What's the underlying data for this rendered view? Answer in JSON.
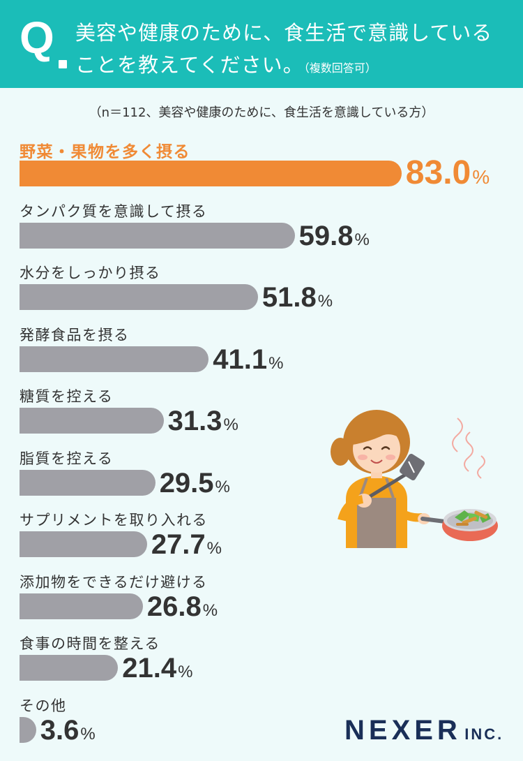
{
  "header": {
    "q": "Q",
    "line1": "美容や健康のために、食生活で意識している",
    "line2": "ことを教えてください。",
    "note": "（複数回答可）"
  },
  "sample": "（n＝112、美容や健康のために、食生活を意識している方）",
  "unit": "%",
  "colors": {
    "header": "#1bbdb8",
    "highlight": "#f08a35",
    "bar": "#a0a0a6",
    "background": "#eefafa",
    "logo": "#1a2f58"
  },
  "chart_data": {
    "type": "bar",
    "orientation": "horizontal",
    "categories": [
      "野菜・果物を多く摂る",
      "タンパク質を意識して摂る",
      "水分をしっかり摂る",
      "発酵食品を摂る",
      "糖質を控える",
      "脂質を控える",
      "サプリメントを取り入れる",
      "添加物をできるだけ避ける",
      "食事の時間を整える",
      "その他"
    ],
    "values": [
      83.0,
      59.8,
      51.8,
      41.1,
      31.3,
      29.5,
      27.7,
      26.8,
      21.4,
      3.6
    ],
    "value_labels": [
      "83.0",
      "59.8",
      "51.8",
      "41.1",
      "31.3",
      "29.5",
      "27.7",
      "26.8",
      "21.4",
      "3.6"
    ],
    "highlighted_index": 0,
    "grid": false,
    "legend": "none"
  },
  "logo": {
    "main": "NEXER",
    "inc": "INC."
  }
}
